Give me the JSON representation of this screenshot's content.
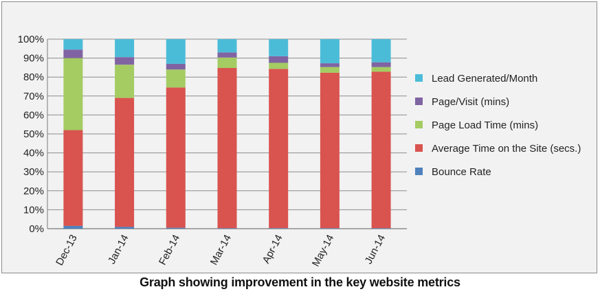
{
  "chart_data": {
    "type": "bar",
    "stacked": true,
    "percent_stacked": true,
    "categories": [
      "Dec-13",
      "Jan-14",
      "Feb-14",
      "Mar-14",
      "Apr-14",
      "May-14",
      "Jun-14"
    ],
    "y_ticks": [
      "0%",
      "10%",
      "20%",
      "30%",
      "40%",
      "50%",
      "60%",
      "70%",
      "80%",
      "90%",
      "100%"
    ],
    "ylim": [
      0,
      100
    ],
    "grid": true,
    "legend_position": "right",
    "series": [
      {
        "name": "Bounce Rate",
        "color": "#4f81bd",
        "values": [
          1.5,
          1,
          0.5,
          0.3,
          0.3,
          0.3,
          0.3
        ]
      },
      {
        "name": "Average Time on the Site (secs.)",
        "color": "#d9534f",
        "values": [
          50.5,
          68,
          74,
          84.5,
          84,
          82,
          82.5
        ]
      },
      {
        "name": "Page Load Time (mins)",
        "color": "#a4cc63",
        "values": [
          38,
          17.5,
          9.5,
          5.5,
          3.2,
          3,
          2.5
        ]
      },
      {
        "name": "Page/Visit (mins)",
        "color": "#8064a2",
        "values": [
          4.5,
          4,
          3,
          2.7,
          3.5,
          2,
          2.5
        ]
      },
      {
        "name": "Lead Generated/Month",
        "color": "#4bbcd8",
        "values": [
          5.5,
          9.5,
          13,
          7,
          9,
          12.7,
          12.2
        ]
      }
    ]
  },
  "caption": "Graph showing improvement in the key website metrics"
}
